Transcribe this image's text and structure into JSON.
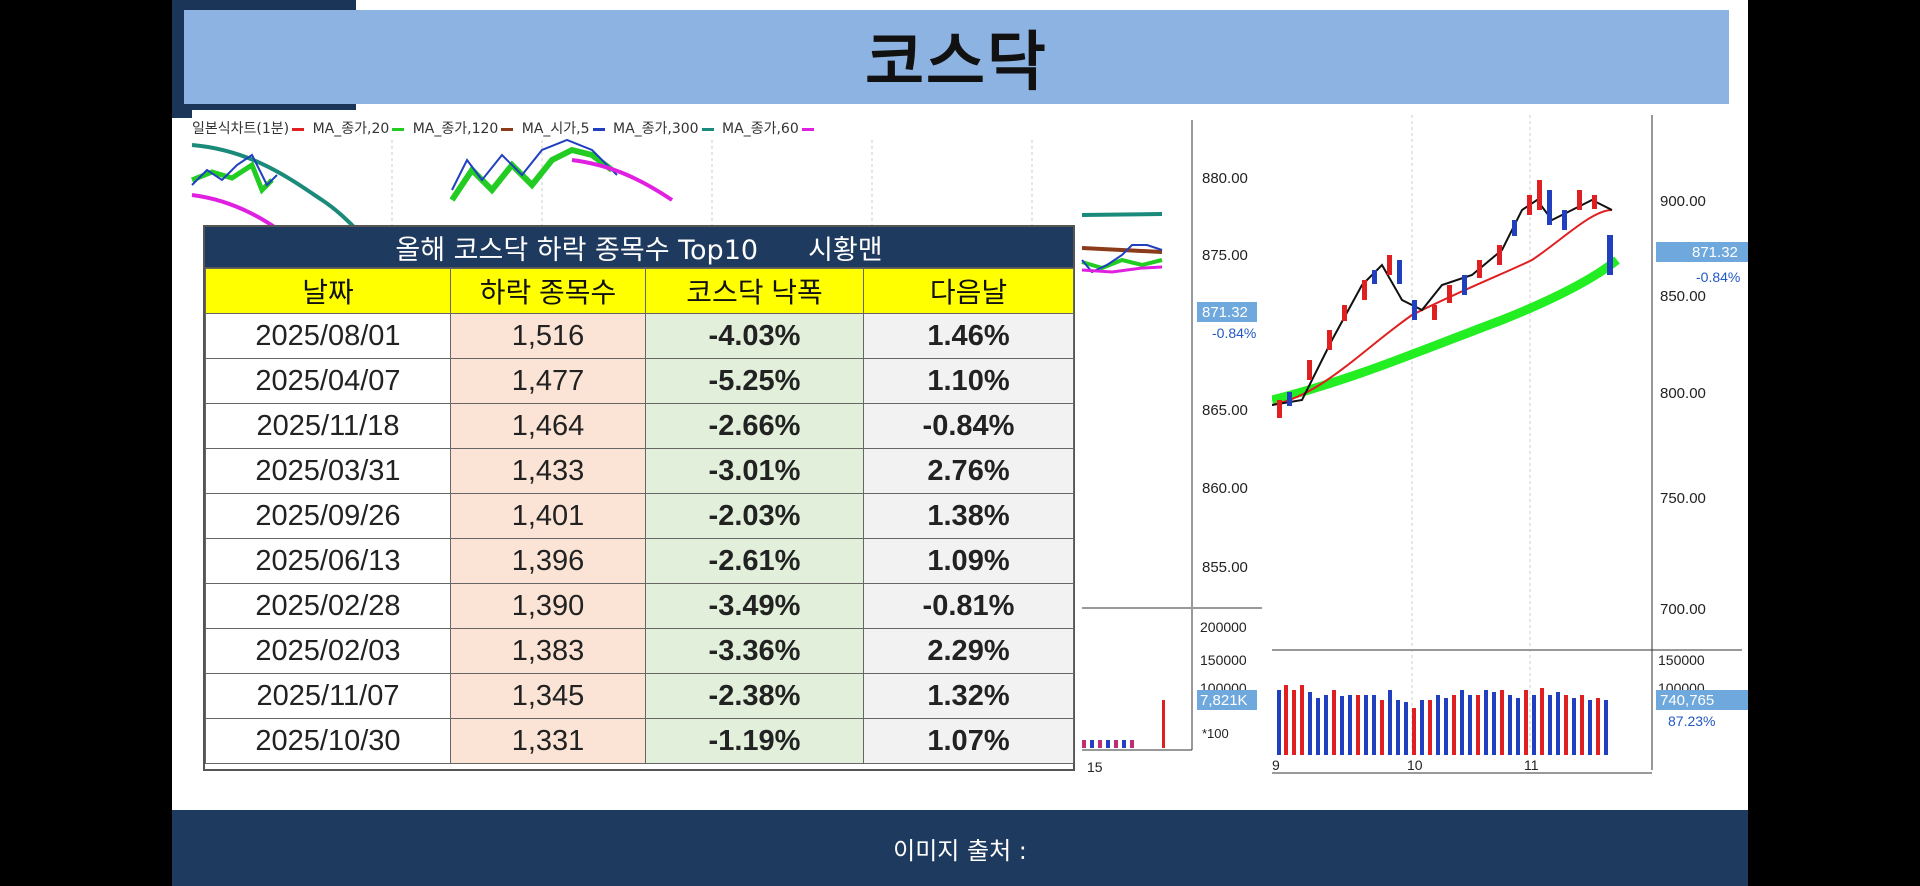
{
  "title": "코스닥",
  "footer": "이미지 출처 :",
  "chart_legend": [
    {
      "label": "일본식차트(1분)",
      "color": "#e02020"
    },
    {
      "label": "MA_종가,20",
      "color": "#22cc22"
    },
    {
      "label": "MA_종가,120",
      "color": "#8b3a1a"
    },
    {
      "label": "MA_시가,5",
      "color": "#2040c0"
    },
    {
      "label": "MA_종가,300",
      "color": "#1a8a7a"
    },
    {
      "label": "MA_종가,60",
      "color": "#e020e0"
    }
  ],
  "left_chart": {
    "price_axis": [
      "880.00",
      "875.00",
      "865.00",
      "860.00",
      "855.00"
    ],
    "current_price": "871.32",
    "current_change": "-0.84%",
    "volume_axis": [
      "200000",
      "150000",
      "100000"
    ],
    "volume_current": "7,821K",
    "volume_unit": "*100",
    "time_label": "15"
  },
  "right_chart": {
    "price_axis": [
      "900.00",
      "850.00",
      "800.00",
      "750.00",
      "700.00"
    ],
    "current_price": "871.32",
    "current_change": "-0.84%",
    "volume_axis": [
      "150000",
      "100000"
    ],
    "volume_current": "740,765",
    "volume_pct": "87.23%",
    "months": [
      "9",
      "10",
      "11"
    ]
  },
  "table": {
    "heading": "올해 코스닥 하락 종목수 Top10",
    "brand": "시황맨",
    "columns": [
      "날짜",
      "하락 종목수",
      "코스닥 낙폭",
      "다음날"
    ],
    "rows": [
      {
        "date": "2025/08/01",
        "count": "1,516",
        "drop": "-4.03%",
        "next": "1.46%",
        "next_sign": "pos"
      },
      {
        "date": "2025/04/07",
        "count": "1,477",
        "drop": "-5.25%",
        "next": "1.10%",
        "next_sign": "pos"
      },
      {
        "date": "2025/11/18",
        "count": "1,464",
        "drop": "-2.66%",
        "next": "-0.84%",
        "next_sign": "neg"
      },
      {
        "date": "2025/03/31",
        "count": "1,433",
        "drop": "-3.01%",
        "next": "2.76%",
        "next_sign": "pos"
      },
      {
        "date": "2025/09/26",
        "count": "1,401",
        "drop": "-2.03%",
        "next": "1.38%",
        "next_sign": "pos"
      },
      {
        "date": "2025/06/13",
        "count": "1,396",
        "drop": "-2.61%",
        "next": "1.09%",
        "next_sign": "pos"
      },
      {
        "date": "2025/02/28",
        "count": "1,390",
        "drop": "-3.49%",
        "next": "-0.81%",
        "next_sign": "neg"
      },
      {
        "date": "2025/02/03",
        "count": "1,383",
        "drop": "-3.36%",
        "next": "2.29%",
        "next_sign": "pos"
      },
      {
        "date": "2025/11/07",
        "count": "1,345",
        "drop": "-2.38%",
        "next": "1.32%",
        "next_sign": "pos"
      },
      {
        "date": "2025/10/30",
        "count": "1,331",
        "drop": "-1.19%",
        "next": "1.07%",
        "next_sign": "pos"
      }
    ]
  }
}
